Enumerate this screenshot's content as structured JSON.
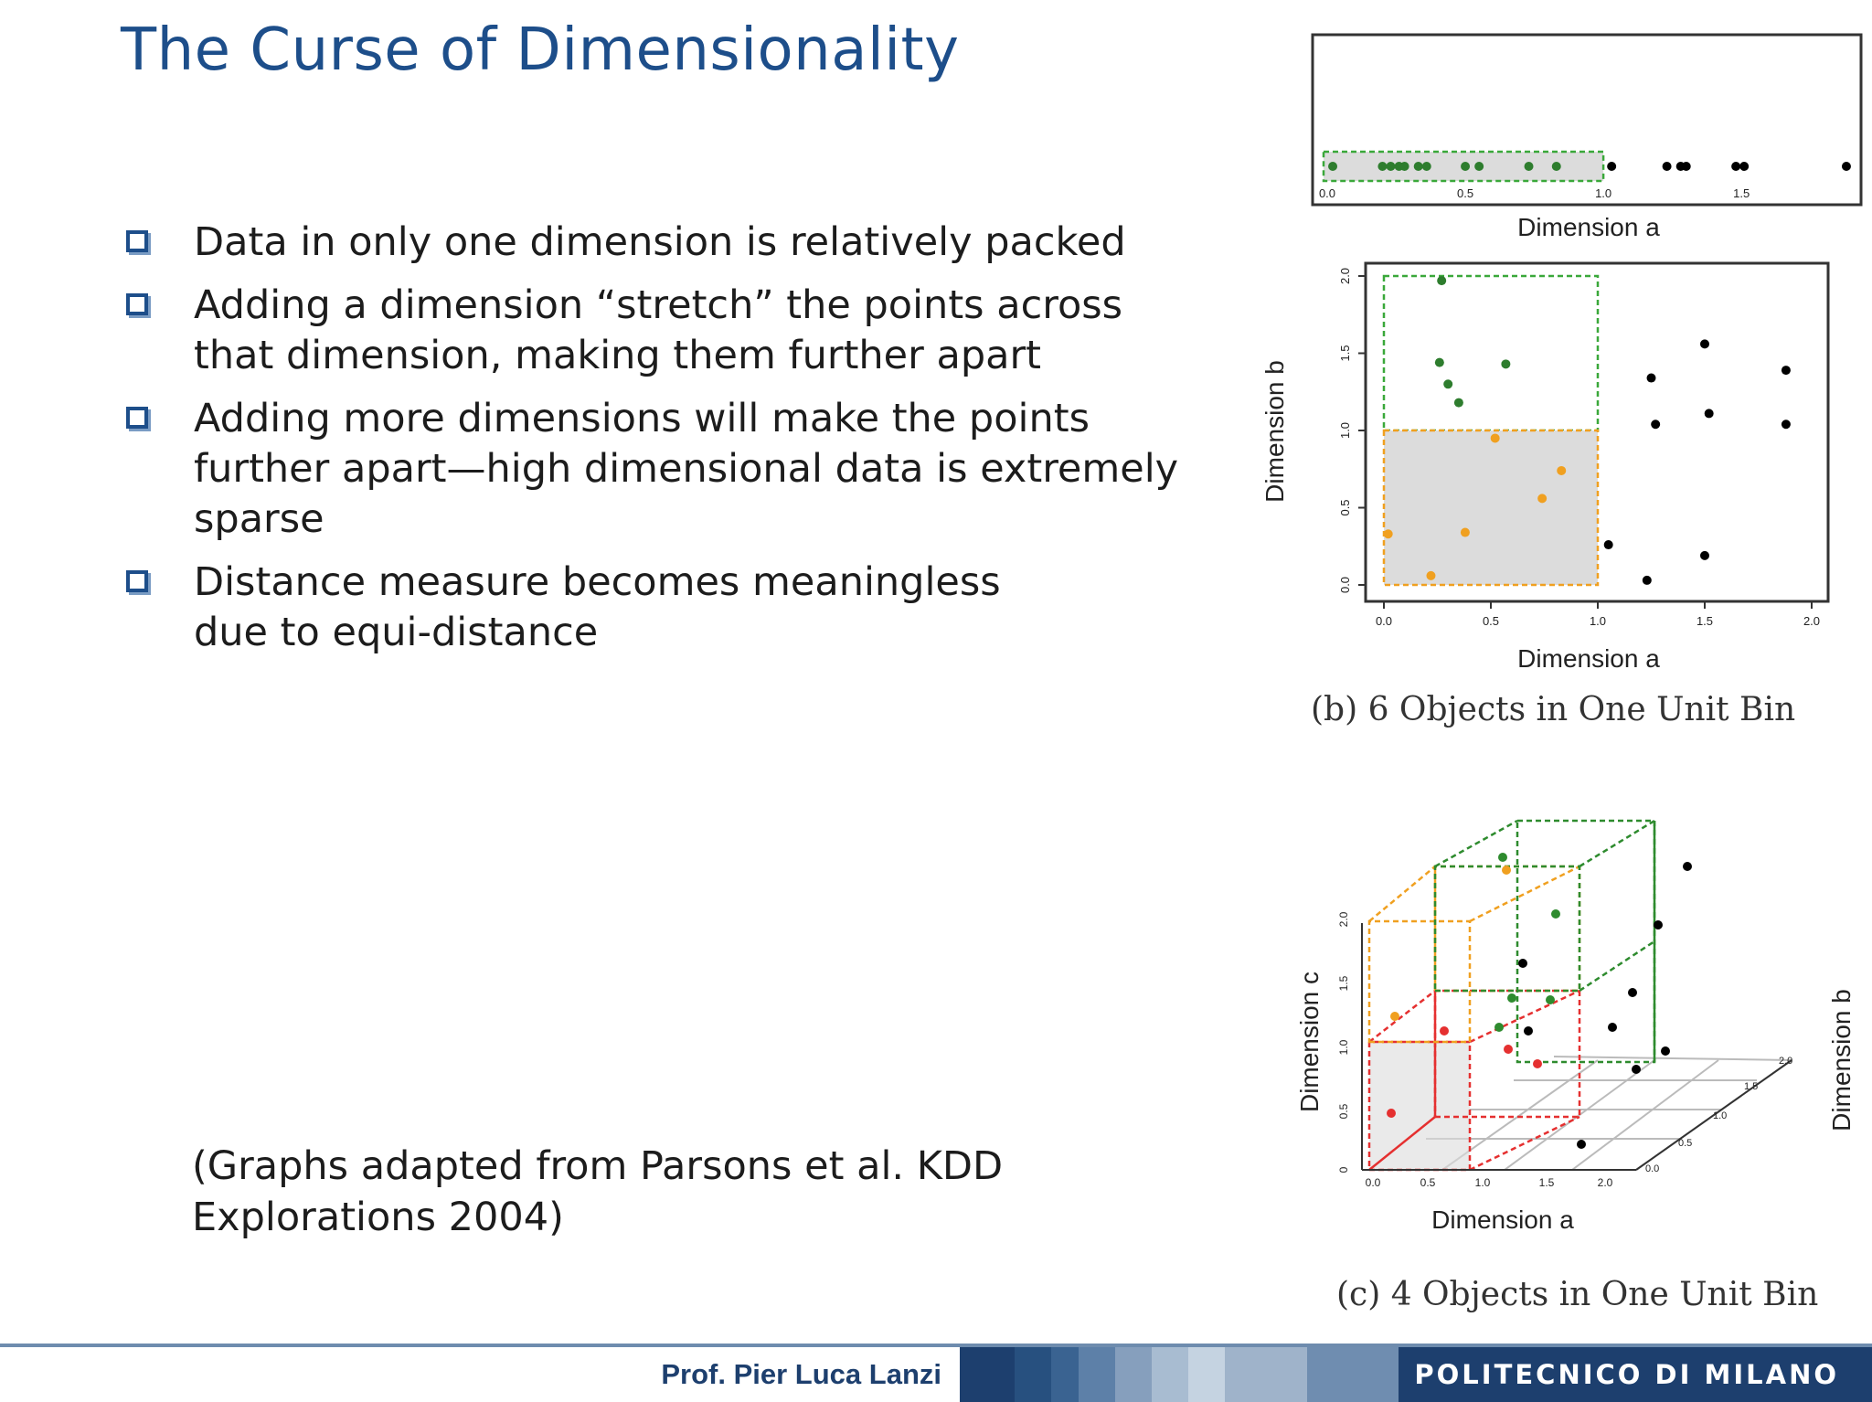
{
  "title": "The Curse of Dimensionality",
  "bullets": [
    [
      "Data in only one dimension is relatively packed"
    ],
    [
      "Adding a dimension “stretch” the  points across",
      "that dimension, making them further apart"
    ],
    [
      "Adding more dimensions will make the points",
      "further apart—high dimensional data is extremely",
      "sparse"
    ],
    [
      "Distance measure becomes meaningless",
      "due to equi-distance"
    ]
  ],
  "note": [
    "(Graphs adapted from Parsons et al. KDD",
    "Explorations 2004)"
  ],
  "footer": {
    "name": "Prof. Pier Luca Lanzi",
    "institution": "POLITECNICO DI MILANO",
    "bar_colors": [
      "#1d3f6e",
      "#27507f",
      "#3a6391",
      "#5d80a8",
      "#869fbd",
      "#a8bcd1",
      "#c5d3e1",
      "#9fb3ca",
      "#6f8db0",
      "#1d3f6e"
    ]
  },
  "chart_data": [
    {
      "type": "scatter",
      "xlabel": "Dimension a",
      "xticks": [
        "0.0",
        "0.5",
        "1.0",
        "1.5"
      ],
      "xlim": [
        0,
        1.9
      ],
      "series": [
        {
          "color": "#2e7d2e",
          "x": [
            0.02,
            0.2,
            0.23,
            0.26,
            0.28,
            0.33,
            0.36,
            0.5,
            0.55,
            0.73,
            0.83
          ],
          "y": [
            0,
            0,
            0,
            0,
            0,
            0,
            0,
            0,
            0,
            0,
            0
          ]
        },
        {
          "color": "#000000",
          "x": [
            1.03,
            1.23,
            1.28,
            1.3,
            1.48,
            1.51,
            1.88
          ],
          "y": [
            0,
            0,
            0,
            0,
            0,
            0,
            0
          ]
        }
      ],
      "highlight_bin": {
        "x": [
          0,
          1.0
        ],
        "color": "#3aa83a"
      }
    },
    {
      "type": "scatter",
      "xlabel": "Dimension a",
      "ylabel": "Dimension b",
      "xticks": [
        "0.0",
        "0.5",
        "1.0",
        "1.5",
        "2.0"
      ],
      "yticks": [
        "0.0",
        "0.5",
        "1.0",
        "1.5",
        "2.0"
      ],
      "xlim": [
        0,
        2.0
      ],
      "ylim": [
        0,
        2.0
      ],
      "caption": "(b) 6 Objects in One Unit Bin",
      "series": [
        {
          "color": "#2e7d2e",
          "x": [
            0.27,
            0.26,
            0.3,
            0.35,
            0.57
          ],
          "y": [
            1.97,
            1.44,
            1.3,
            1.18,
            1.43
          ]
        },
        {
          "color": "#f0a020",
          "x": [
            0.02,
            0.22,
            0.38,
            0.52,
            0.74,
            0.83
          ],
          "y": [
            0.33,
            0.06,
            0.34,
            0.95,
            0.56,
            0.74
          ]
        },
        {
          "color": "#000000",
          "x": [
            1.05,
            1.23,
            1.25,
            1.27,
            1.5,
            1.5,
            1.52,
            1.88,
            1.88
          ],
          "y": [
            0.26,
            0.03,
            1.34,
            1.04,
            0.19,
            1.56,
            1.11,
            1.39,
            1.04
          ]
        }
      ],
      "highlight_bins": [
        {
          "x": [
            0,
            1.0
          ],
          "y": [
            1.0,
            2.0
          ],
          "color": "#3aa83a"
        },
        {
          "x": [
            0,
            1.0
          ],
          "y": [
            0,
            1.0
          ],
          "color": "#f0a020"
        }
      ]
    },
    {
      "type": "scatter",
      "xlabel": "Dimension a",
      "ylabel": "Dimension c",
      "zlabel": "Dimension b",
      "xticks": [
        "0.0",
        "0.5",
        "1.0",
        "1.5",
        "2.0"
      ],
      "yticks": [
        "0",
        "0.5",
        "1.0",
        "1.5",
        "2.0"
      ],
      "zticks": [
        "0.0",
        "0.5",
        "1.0",
        "1.5",
        "2.0"
      ],
      "caption": "(c) 4 Objects in One Unit Bin"
    }
  ]
}
